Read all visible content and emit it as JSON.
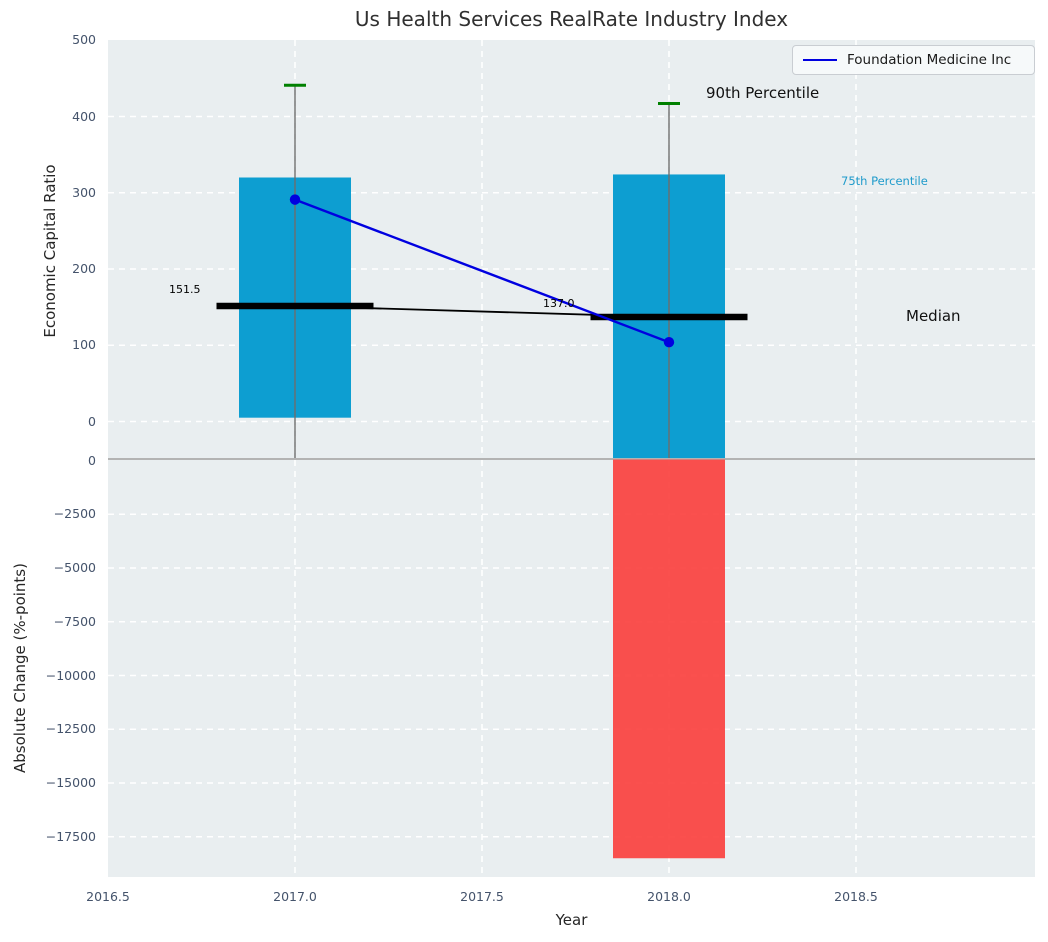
{
  "chart_data": {
    "type": "combo",
    "title": "Us Health Services RealRate Industry Index",
    "xlabel": "Year",
    "xlim": [
      2016.5,
      2019.0
    ],
    "x_ticks": [
      {
        "label": "2016.5",
        "value": 2016.5
      },
      {
        "label": "2017.0",
        "value": 2017.0
      },
      {
        "label": "2017.5",
        "value": 2017.5
      },
      {
        "label": "2018.0",
        "value": 2018.0
      },
      {
        "label": "2018.5",
        "value": 2018.5
      }
    ],
    "legend": {
      "position": "upper right",
      "entries": [
        {
          "label": "Foundation Medicine Inc",
          "color": "#0000e0"
        }
      ]
    },
    "top_panel": {
      "ylabel": "Economic Capital Ratio",
      "ylim": [
        -48,
        500
      ],
      "y_ticks": [
        {
          "label": "500",
          "value": 500
        },
        {
          "label": "400",
          "value": 400
        },
        {
          "label": "300",
          "value": 300
        },
        {
          "label": "200",
          "value": 200
        },
        {
          "label": "100",
          "value": 100
        },
        {
          "label": "0",
          "value": 0
        }
      ],
      "grid_y": [
        400,
        300,
        200,
        100,
        0
      ],
      "grid_x": [
        2017,
        2017.5,
        2018,
        2018.5
      ],
      "percentile_bars": [
        {
          "year": 2017,
          "p25": 5,
          "p75": 320,
          "p90": 441,
          "median": 151.5,
          "median_label": "151.5"
        },
        {
          "year": 2018,
          "p25": null,
          "p25_clipped_below_axis": true,
          "p75": 324,
          "p90": 417,
          "median": 137.0,
          "median_label": "137.0"
        }
      ],
      "series": {
        "name": "Foundation Medicine Inc",
        "points": [
          {
            "year": 2017,
            "value": 291
          },
          {
            "year": 2018,
            "value": 104
          }
        ]
      },
      "annotations": {
        "p90": "90th Percentile",
        "p75": "75th Percentile",
        "median": "Median"
      }
    },
    "bottom_panel": {
      "ylabel": "Absolute Change (%-points)",
      "ylim": [
        -19400,
        0
      ],
      "y_ticks": [
        {
          "label": "0",
          "value": 0
        },
        {
          "label": "−2500",
          "value": -2500
        },
        {
          "label": "−5000",
          "value": -5000
        },
        {
          "label": "−7500",
          "value": -7500
        },
        {
          "label": "−10000",
          "value": -10000
        },
        {
          "label": "−12500",
          "value": -12500
        },
        {
          "label": "−15000",
          "value": -15000
        },
        {
          "label": "−17500",
          "value": -17500
        }
      ],
      "grid_y": [
        -2500,
        -5000,
        -7500,
        -10000,
        -12500,
        -15000,
        -17500
      ],
      "bars": [
        {
          "year": 2018,
          "value": -18500
        }
      ]
    },
    "colors": {
      "panel_background": "#e9eef0",
      "grid": "#ffffff",
      "bar_blue": "#0d9ed1",
      "bar_red": "#fb3d3b",
      "p90_cap_green": "#008000",
      "series_blue": "#0000e0",
      "median_black": "#000000",
      "whisker_gray": "#6e6e6e",
      "zero_baseline_gray": "#b3b3b3",
      "tick_label": "#44536b",
      "p75_annotation": "#1f9bcb"
    }
  }
}
